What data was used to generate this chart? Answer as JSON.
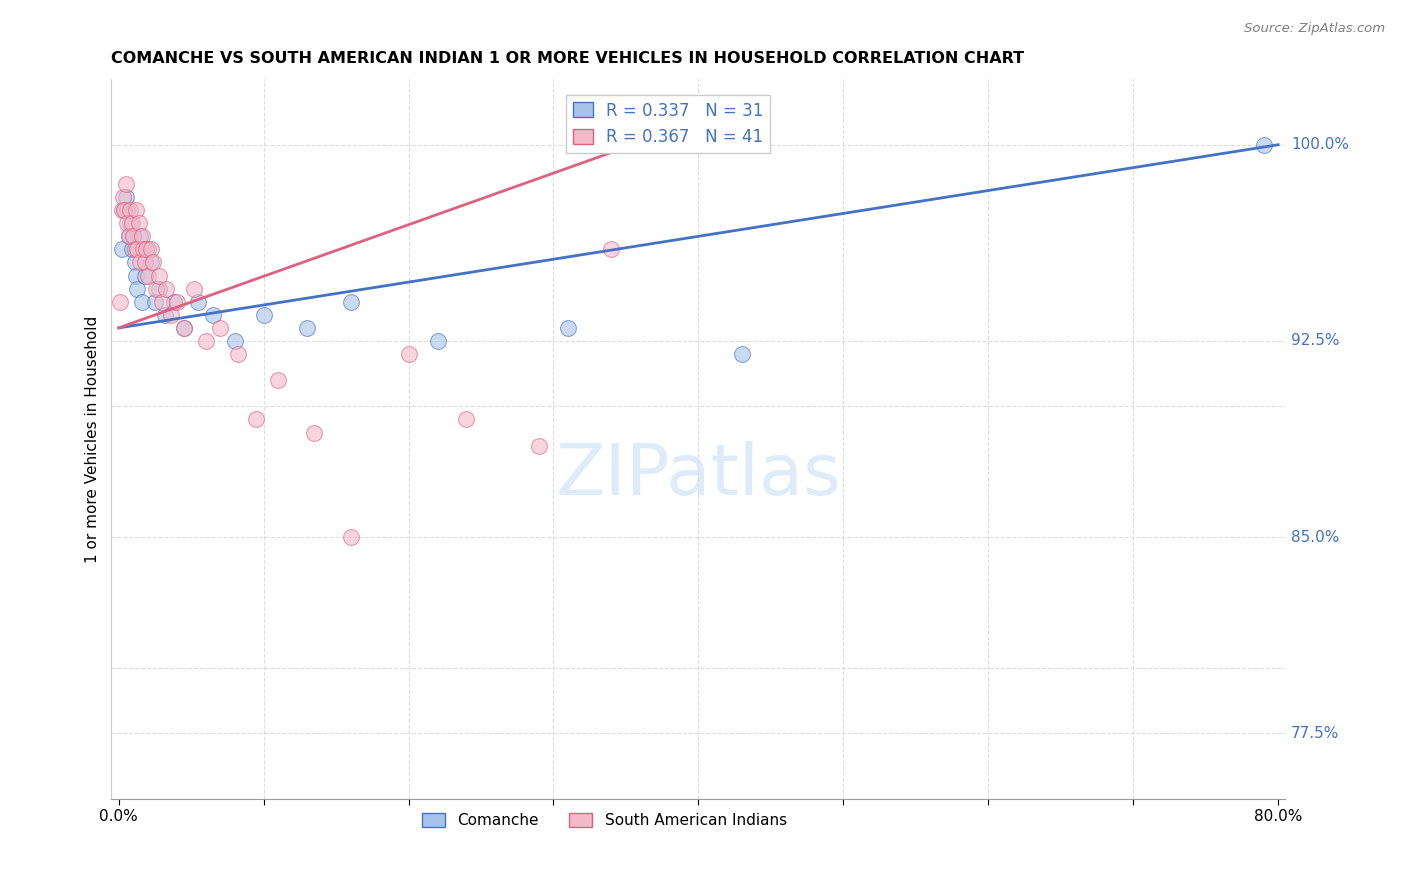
{
  "title": "COMANCHE VS SOUTH AMERICAN INDIAN 1 OR MORE VEHICLES IN HOUSEHOLD CORRELATION CHART",
  "source": "Source: ZipAtlas.com",
  "ylabel": "1 or more Vehicles in Household",
  "legend_label_1": "Comanche",
  "legend_label_2": "South American Indians",
  "R1": 0.337,
  "N1": 31,
  "R2": 0.367,
  "N2": 41,
  "xlim": [
    -0.005,
    0.805
  ],
  "ylim": [
    0.75,
    1.025
  ],
  "color_blue": "#A8C4E8",
  "color_pink": "#F4B8C8",
  "color_blue_line": "#4472C4",
  "color_pink_line": "#E06080",
  "color_axis_labels": "#4472C4",
  "grid_y": [
    0.775,
    0.8,
    0.85,
    0.9,
    0.925,
    1.0
  ],
  "grid_x": [
    0.1,
    0.2,
    0.3,
    0.4,
    0.5,
    0.6,
    0.7
  ],
  "right_ytick_labels": {
    "1.00": "100.0%",
    "0.925": "92.5%",
    "0.85": "85.0%",
    "0.775": "77.5%"
  },
  "comanche_x": [
    0.002,
    0.004,
    0.005,
    0.006,
    0.007,
    0.008,
    0.009,
    0.01,
    0.011,
    0.012,
    0.013,
    0.015,
    0.016,
    0.018,
    0.02,
    0.022,
    0.025,
    0.028,
    0.032,
    0.038,
    0.045,
    0.055,
    0.065,
    0.08,
    0.1,
    0.13,
    0.16,
    0.22,
    0.31,
    0.43,
    0.79
  ],
  "comanche_y": [
    0.96,
    0.975,
    0.98,
    0.975,
    0.965,
    0.97,
    0.96,
    0.965,
    0.955,
    0.95,
    0.945,
    0.965,
    0.94,
    0.95,
    0.96,
    0.955,
    0.94,
    0.945,
    0.935,
    0.94,
    0.93,
    0.94,
    0.935,
    0.925,
    0.935,
    0.93,
    0.94,
    0.925,
    0.93,
    0.92,
    1.0
  ],
  "sa_indian_x": [
    0.001,
    0.002,
    0.003,
    0.004,
    0.005,
    0.006,
    0.007,
    0.008,
    0.009,
    0.01,
    0.011,
    0.012,
    0.013,
    0.014,
    0.015,
    0.016,
    0.017,
    0.018,
    0.019,
    0.02,
    0.022,
    0.024,
    0.026,
    0.028,
    0.03,
    0.033,
    0.036,
    0.04,
    0.045,
    0.052,
    0.06,
    0.07,
    0.082,
    0.095,
    0.11,
    0.135,
    0.16,
    0.2,
    0.24,
    0.29,
    0.34
  ],
  "sa_indian_y": [
    0.94,
    0.975,
    0.98,
    0.975,
    0.985,
    0.97,
    0.965,
    0.975,
    0.97,
    0.965,
    0.96,
    0.975,
    0.96,
    0.97,
    0.955,
    0.965,
    0.96,
    0.955,
    0.96,
    0.95,
    0.96,
    0.955,
    0.945,
    0.95,
    0.94,
    0.945,
    0.935,
    0.94,
    0.93,
    0.945,
    0.925,
    0.93,
    0.92,
    0.895,
    0.91,
    0.89,
    0.85,
    0.92,
    0.895,
    0.885,
    0.96
  ],
  "blue_line_x": [
    0.0,
    0.8
  ],
  "blue_line_y": [
    0.93,
    1.0
  ],
  "pink_line_x": [
    0.0,
    0.355
  ],
  "pink_line_y": [
    0.93,
    1.0
  ]
}
